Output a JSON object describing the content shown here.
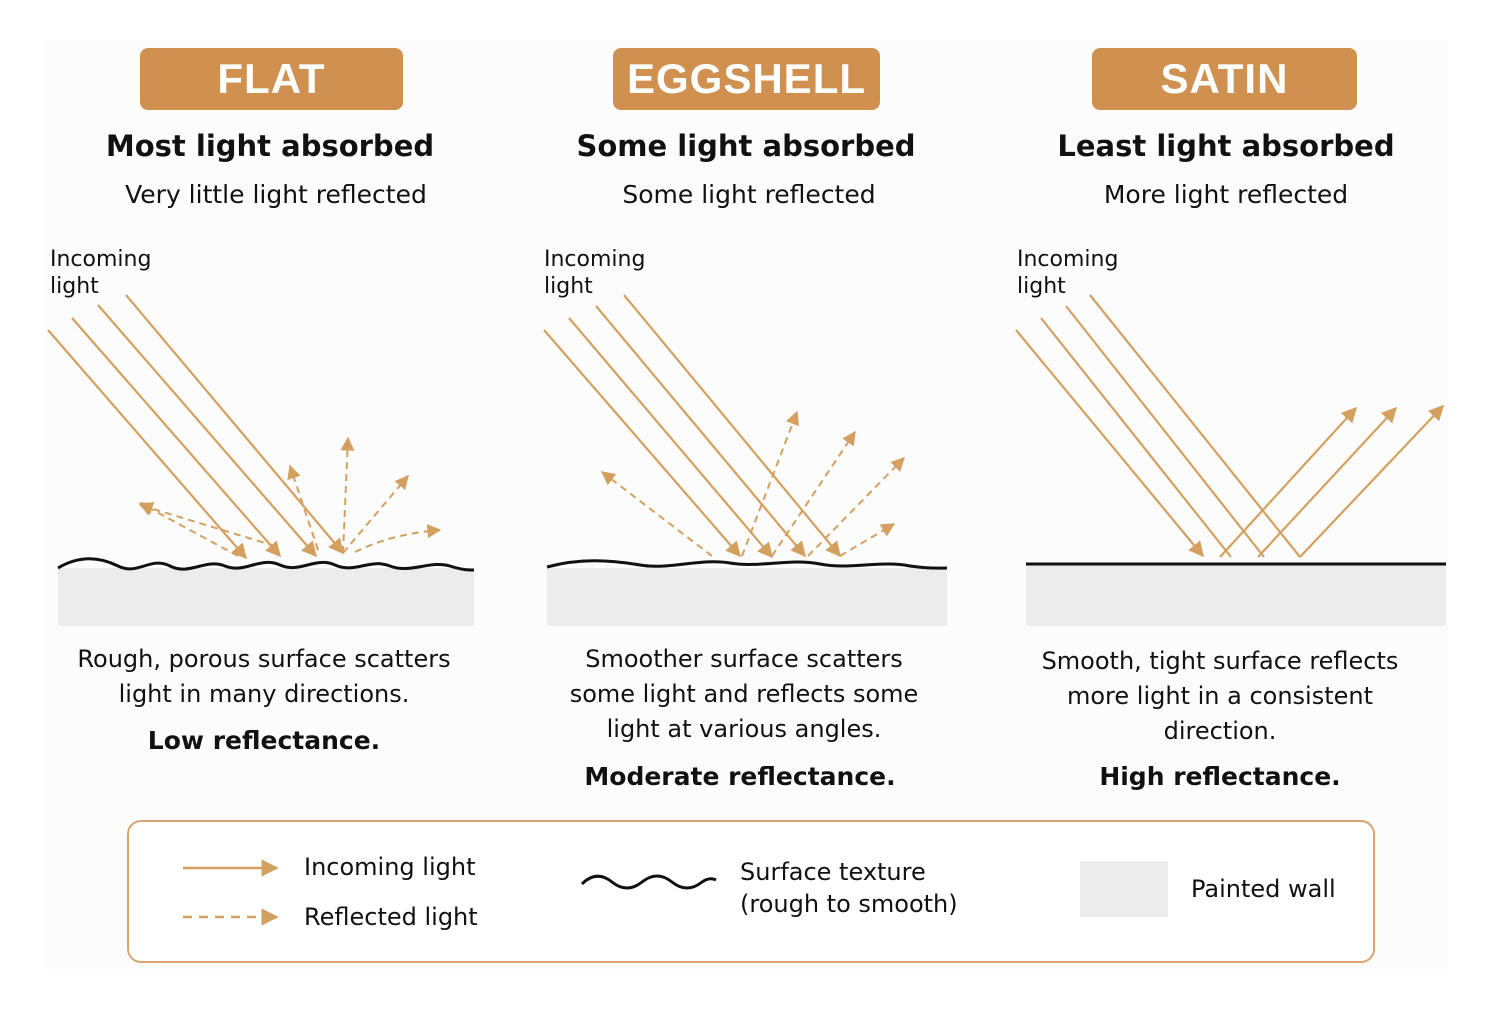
{
  "colors": {
    "badge": "#cf9050",
    "light_ray": "#d4a060",
    "surface_line": "#111111",
    "wall": "#ececec",
    "legend_border": "#d8a470"
  },
  "columns": [
    {
      "badge": "FLAT",
      "heading": "Most light absorbed",
      "subheading": "Very little light reflected",
      "incoming_label": "Incoming\nlight",
      "surface": "rough",
      "description": "Rough, porous surface scatters\nlight in many directions.",
      "verdict": "Low reflectance."
    },
    {
      "badge": "EGGSHELL",
      "heading": "Some light absorbed",
      "subheading": "Some light reflected",
      "incoming_label": "Incoming\nlight",
      "surface": "slightly rough",
      "description": "Smoother surface scatters\nsome light and reflects some\nlight at various angles.",
      "verdict": "Moderate reflectance."
    },
    {
      "badge": "SATIN",
      "heading": "Least light absorbed",
      "subheading": "More light reflected",
      "incoming_label": "Incoming\nlight",
      "surface": "smooth",
      "description": "Smooth, tight surface reflects\nmore light in a consistent\ndirection.",
      "verdict": "High reflectance."
    }
  ],
  "legend": {
    "incoming": "Incoming light",
    "reflected": "Reflected light",
    "surface": "Surface texture\n(rough to smooth)",
    "wall": "Painted wall"
  }
}
